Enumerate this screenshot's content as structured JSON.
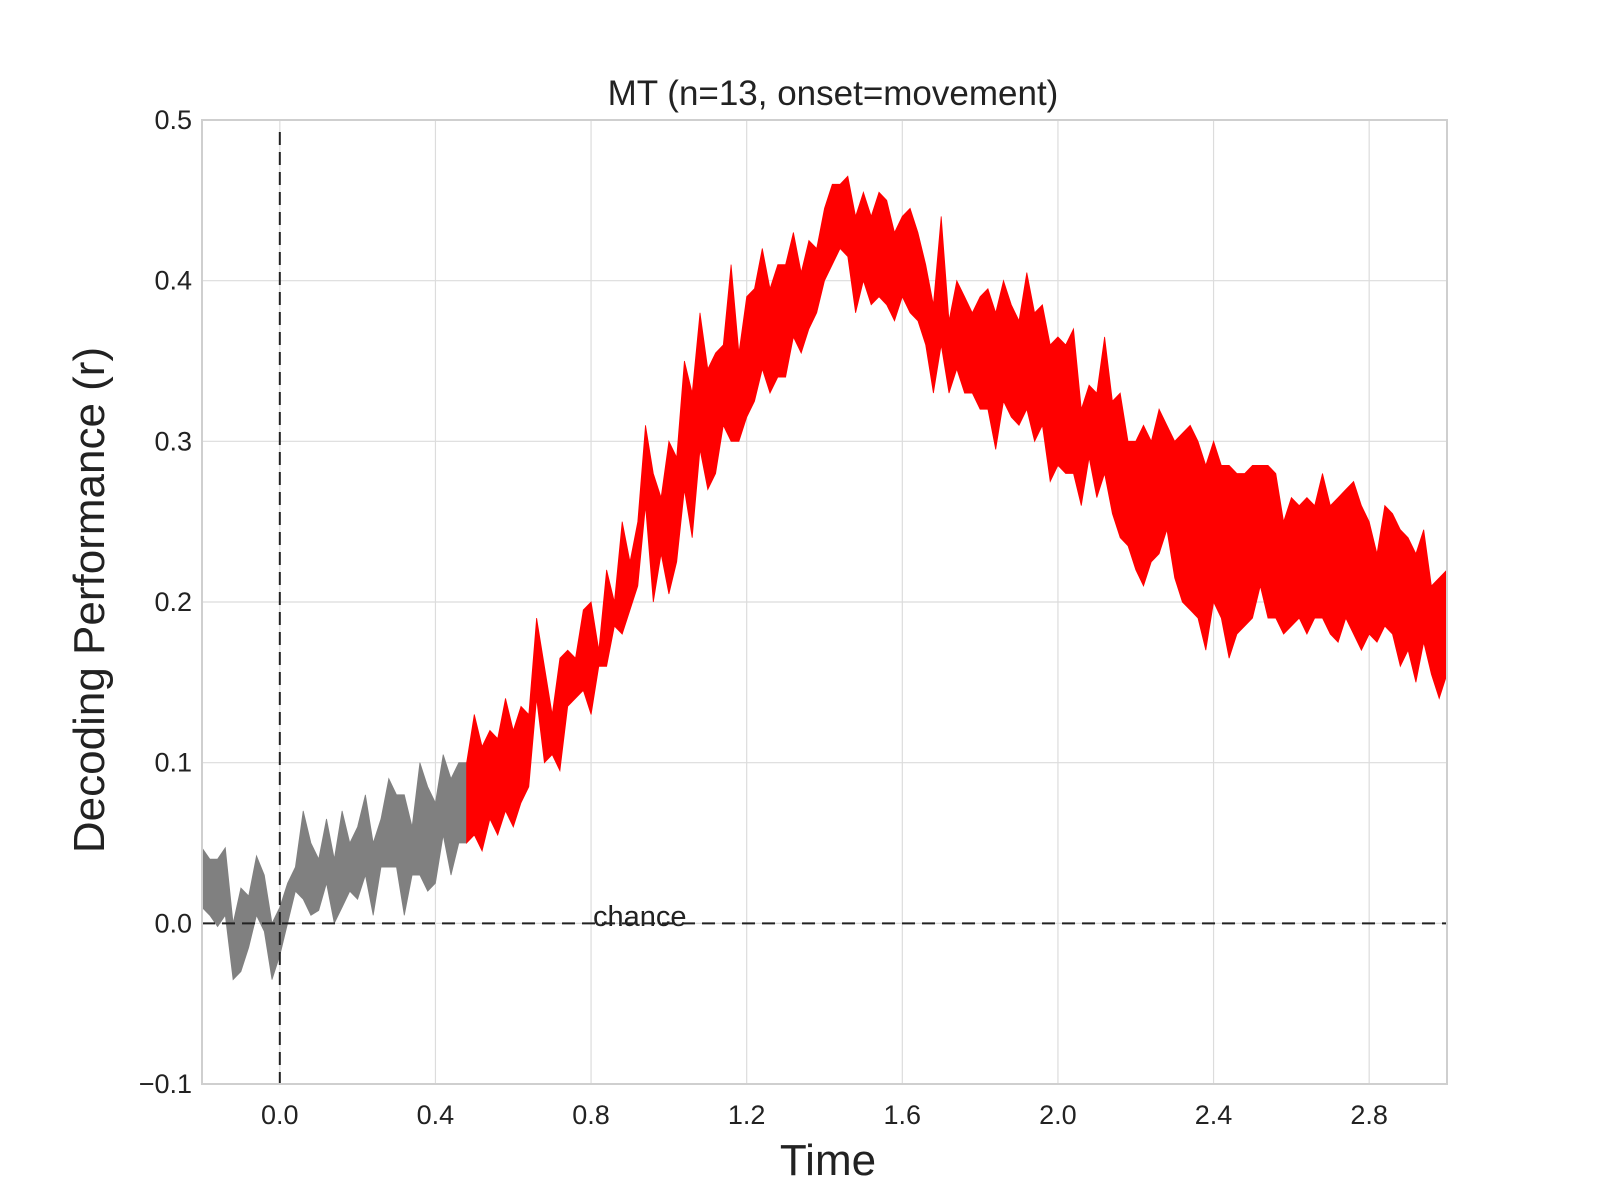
{
  "chart_data": {
    "type": "area",
    "title": "MT (n=13, onset=movement)",
    "xlabel": "Time",
    "ylabel": "Decoding Performance (r)",
    "xlim": [
      -0.2,
      3.0
    ],
    "ylim": [
      -0.1,
      0.5
    ],
    "x_ticks": [
      "0.0",
      "0.4",
      "0.8",
      "1.2",
      "1.6",
      "2.0",
      "2.4",
      "2.8"
    ],
    "y_ticks": [
      "−0.1",
      "0.0",
      "0.1",
      "0.2",
      "0.3",
      "0.4",
      "0.5"
    ],
    "grid": true,
    "annotations": [
      {
        "text": "chance",
        "x": 0.8,
        "y": 0.0
      },
      {
        "type": "hline",
        "y": 0.0,
        "style": "dashed"
      },
      {
        "type": "vline",
        "x": 0.0,
        "style": "dashed"
      }
    ],
    "colors": {
      "not_significant": "#808080",
      "significant": "#ff0000"
    },
    "series": [
      {
        "kind": "band",
        "color_key": "not_significant",
        "x": [
          -0.2,
          -0.18,
          -0.16,
          -0.14,
          -0.12,
          -0.1,
          -0.08,
          -0.06,
          -0.04,
          -0.02,
          0.0,
          0.02,
          0.04,
          0.06,
          0.08,
          0.1,
          0.12,
          0.14,
          0.16,
          0.18,
          0.2,
          0.22,
          0.24,
          0.26,
          0.28,
          0.3,
          0.32,
          0.34,
          0.36,
          0.38,
          0.4,
          0.42,
          0.44,
          0.46,
          0.48
        ],
        "upper": [
          0.047,
          0.04,
          0.04,
          0.047,
          0.0,
          0.022,
          0.017,
          0.042,
          0.03,
          0.0,
          0.01,
          0.025,
          0.035,
          0.07,
          0.05,
          0.04,
          0.065,
          0.04,
          0.07,
          0.05,
          0.06,
          0.08,
          0.05,
          0.065,
          0.09,
          0.08,
          0.08,
          0.06,
          0.1,
          0.085,
          0.075,
          0.105,
          0.09,
          0.1,
          0.1
        ],
        "lower": [
          0.01,
          0.005,
          -0.002,
          0.005,
          -0.035,
          -0.03,
          -0.015,
          0.005,
          -0.005,
          -0.035,
          -0.02,
          0.0,
          0.02,
          0.015,
          0.005,
          0.008,
          0.025,
          0.0,
          0.01,
          0.02,
          0.015,
          0.03,
          0.005,
          0.035,
          0.035,
          0.035,
          0.005,
          0.03,
          0.03,
          0.02,
          0.025,
          0.055,
          0.03,
          0.05,
          0.05
        ]
      },
      {
        "kind": "band",
        "color_key": "significant",
        "x": [
          0.48,
          0.5,
          0.52,
          0.54,
          0.56,
          0.58,
          0.6,
          0.62,
          0.64,
          0.66,
          0.68,
          0.7,
          0.72,
          0.74,
          0.76,
          0.78,
          0.8,
          0.82,
          0.84,
          0.86,
          0.88,
          0.9,
          0.92,
          0.94,
          0.96,
          0.98,
          1.0,
          1.02,
          1.04,
          1.06,
          1.08,
          1.1,
          1.12,
          1.14,
          1.16,
          1.18,
          1.2,
          1.22,
          1.24,
          1.26,
          1.28,
          1.3,
          1.32,
          1.34,
          1.36,
          1.38,
          1.4,
          1.42,
          1.44,
          1.46,
          1.48,
          1.5,
          1.52,
          1.54,
          1.56,
          1.58,
          1.6,
          1.62,
          1.64,
          1.66,
          1.68,
          1.7,
          1.72,
          1.74,
          1.76,
          1.78,
          1.8,
          1.82,
          1.84,
          1.86,
          1.88,
          1.9,
          1.92,
          1.94,
          1.96,
          1.98,
          2.0,
          2.02,
          2.04,
          2.06,
          2.08,
          2.1,
          2.12,
          2.14,
          2.16,
          2.18,
          2.2,
          2.22,
          2.24,
          2.26,
          2.28,
          2.3,
          2.32,
          2.34,
          2.36,
          2.38,
          2.4,
          2.42,
          2.44,
          2.46,
          2.48,
          2.5,
          2.52,
          2.54,
          2.56,
          2.58,
          2.6,
          2.62,
          2.64,
          2.66,
          2.68,
          2.7,
          2.72,
          2.74,
          2.76,
          2.78,
          2.8,
          2.82,
          2.84,
          2.86,
          2.88,
          2.9,
          2.92,
          2.94,
          2.96,
          2.98,
          3.0
        ],
        "upper": [
          0.1,
          0.13,
          0.11,
          0.12,
          0.115,
          0.14,
          0.12,
          0.135,
          0.13,
          0.19,
          0.16,
          0.13,
          0.165,
          0.17,
          0.165,
          0.195,
          0.2,
          0.17,
          0.22,
          0.2,
          0.25,
          0.225,
          0.25,
          0.31,
          0.28,
          0.265,
          0.3,
          0.29,
          0.35,
          0.33,
          0.38,
          0.345,
          0.355,
          0.36,
          0.41,
          0.355,
          0.39,
          0.395,
          0.42,
          0.395,
          0.41,
          0.41,
          0.43,
          0.405,
          0.425,
          0.42,
          0.445,
          0.46,
          0.46,
          0.465,
          0.44,
          0.455,
          0.44,
          0.455,
          0.45,
          0.43,
          0.44,
          0.445,
          0.43,
          0.41,
          0.385,
          0.44,
          0.375,
          0.4,
          0.39,
          0.38,
          0.39,
          0.395,
          0.38,
          0.4,
          0.385,
          0.375,
          0.405,
          0.38,
          0.385,
          0.36,
          0.365,
          0.36,
          0.37,
          0.32,
          0.335,
          0.33,
          0.365,
          0.325,
          0.33,
          0.3,
          0.3,
          0.31,
          0.3,
          0.32,
          0.31,
          0.3,
          0.305,
          0.31,
          0.3,
          0.285,
          0.3,
          0.285,
          0.285,
          0.28,
          0.28,
          0.285,
          0.285,
          0.285,
          0.28,
          0.25,
          0.265,
          0.26,
          0.265,
          0.26,
          0.28,
          0.26,
          0.265,
          0.27,
          0.275,
          0.26,
          0.25,
          0.23,
          0.26,
          0.255,
          0.245,
          0.24,
          0.23,
          0.245,
          0.21,
          0.215,
          0.22
        ],
        "lower": [
          0.05,
          0.055,
          0.045,
          0.065,
          0.055,
          0.07,
          0.06,
          0.075,
          0.085,
          0.14,
          0.1,
          0.105,
          0.095,
          0.135,
          0.14,
          0.145,
          0.13,
          0.16,
          0.16,
          0.185,
          0.18,
          0.195,
          0.21,
          0.26,
          0.2,
          0.23,
          0.205,
          0.225,
          0.27,
          0.24,
          0.295,
          0.27,
          0.28,
          0.31,
          0.3,
          0.3,
          0.315,
          0.325,
          0.345,
          0.33,
          0.34,
          0.34,
          0.365,
          0.355,
          0.37,
          0.38,
          0.4,
          0.41,
          0.42,
          0.415,
          0.38,
          0.4,
          0.385,
          0.39,
          0.385,
          0.375,
          0.39,
          0.38,
          0.375,
          0.36,
          0.33,
          0.36,
          0.33,
          0.345,
          0.33,
          0.33,
          0.32,
          0.32,
          0.295,
          0.325,
          0.315,
          0.31,
          0.32,
          0.3,
          0.31,
          0.275,
          0.285,
          0.28,
          0.28,
          0.26,
          0.29,
          0.265,
          0.28,
          0.255,
          0.24,
          0.235,
          0.22,
          0.21,
          0.225,
          0.23,
          0.245,
          0.215,
          0.2,
          0.195,
          0.19,
          0.17,
          0.2,
          0.19,
          0.165,
          0.18,
          0.185,
          0.19,
          0.21,
          0.19,
          0.19,
          0.18,
          0.185,
          0.19,
          0.18,
          0.19,
          0.19,
          0.18,
          0.175,
          0.19,
          0.18,
          0.17,
          0.18,
          0.175,
          0.185,
          0.18,
          0.16,
          0.17,
          0.15,
          0.175,
          0.155,
          0.14,
          0.155
        ]
      }
    ]
  }
}
